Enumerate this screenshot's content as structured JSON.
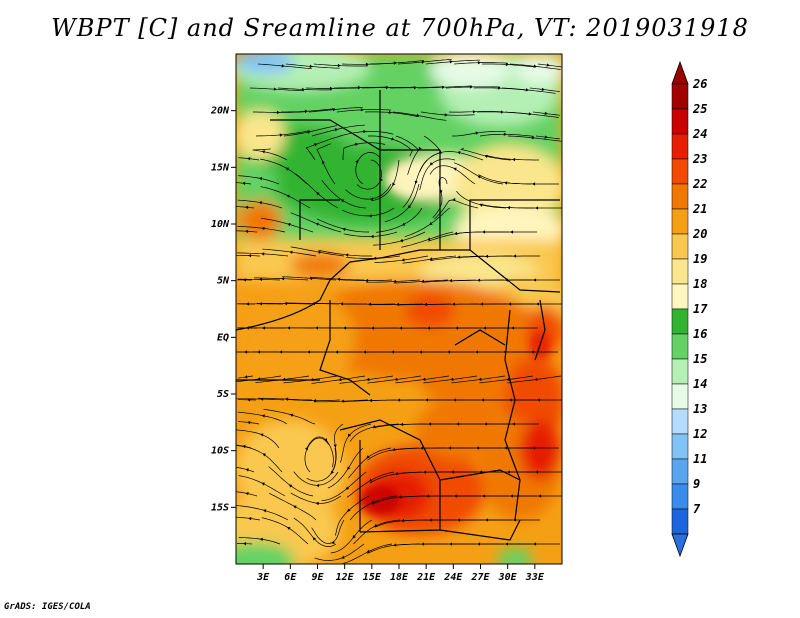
{
  "title": "WBPT [C] and Sreamline at 700hPa, VT: 2019031918",
  "footer": "GrADS: IGES/COLA",
  "map": {
    "lon_range": [
      0,
      36
    ],
    "lat_range": [
      -20,
      25
    ],
    "lat_ticks": [
      {
        "value": 20,
        "label": "20N"
      },
      {
        "value": 15,
        "label": "15N"
      },
      {
        "value": 10,
        "label": "10N"
      },
      {
        "value": 5,
        "label": "5N"
      },
      {
        "value": 0,
        "label": "EQ"
      },
      {
        "value": -5,
        "label": "5S"
      },
      {
        "value": -10,
        "label": "10S"
      },
      {
        "value": -15,
        "label": "15S"
      }
    ],
    "lon_ticks": [
      {
        "value": 3,
        "label": "3E"
      },
      {
        "value": 6,
        "label": "6E"
      },
      {
        "value": 9,
        "label": "9E"
      },
      {
        "value": 12,
        "label": "12E"
      },
      {
        "value": 15,
        "label": "15E"
      },
      {
        "value": 18,
        "label": "18E"
      },
      {
        "value": 21,
        "label": "21E"
      },
      {
        "value": 24,
        "label": "24E"
      },
      {
        "value": 27,
        "label": "27E"
      },
      {
        "value": 30,
        "label": "30E"
      },
      {
        "value": 33,
        "label": "33E"
      }
    ]
  },
  "colorbar": {
    "levels": [
      {
        "label": "26",
        "color": "#a00000"
      },
      {
        "label": "25",
        "color": "#c80000"
      },
      {
        "label": "24",
        "color": "#e61e00"
      },
      {
        "label": "23",
        "color": "#f04b00"
      },
      {
        "label": "22",
        "color": "#f07800"
      },
      {
        "label": "21",
        "color": "#f5a014"
      },
      {
        "label": "20",
        "color": "#fac850"
      },
      {
        "label": "19",
        "color": "#fae68c"
      },
      {
        "label": "18",
        "color": "#fff5be"
      },
      {
        "label": "17",
        "color": "#32b432"
      },
      {
        "label": "16",
        "color": "#64d264"
      },
      {
        "label": "15",
        "color": "#b4f0b4"
      },
      {
        "label": "14",
        "color": "#e6fae6"
      },
      {
        "label": "13",
        "color": "#b4dcff"
      },
      {
        "label": "12",
        "color": "#82c3f5"
      },
      {
        "label": "11",
        "color": "#5aa5f0"
      },
      {
        "label": "9",
        "color": "#3c8ceb"
      },
      {
        "label": "7",
        "color": "#1e64dc"
      }
    ],
    "under_color": "#2a6fe0",
    "over_color": "#9b0000"
  }
}
